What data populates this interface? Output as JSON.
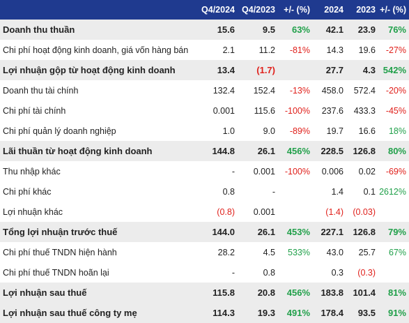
{
  "headers": [
    "",
    "Q4/2024",
    "Q4/2023",
    "+/- (%)",
    "2024",
    "2023",
    "+/- (%)"
  ],
  "rows": [
    {
      "bold": true,
      "cells": [
        {
          "t": "Doanh thu thuần"
        },
        {
          "t": "15.6"
        },
        {
          "t": "9.5"
        },
        {
          "t": "63%",
          "c": "pos"
        },
        {
          "t": "42.1"
        },
        {
          "t": "23.9"
        },
        {
          "t": "76%",
          "c": "pos"
        }
      ]
    },
    {
      "bold": false,
      "cells": [
        {
          "t": "Chi phí hoạt động kinh doanh, giá vốn hàng bán"
        },
        {
          "t": "2.1"
        },
        {
          "t": "11.2"
        },
        {
          "t": "-81%",
          "c": "neg"
        },
        {
          "t": "14.3"
        },
        {
          "t": "19.6"
        },
        {
          "t": "-27%",
          "c": "neg"
        }
      ]
    },
    {
      "bold": true,
      "cells": [
        {
          "t": "Lợi nhuận gộp từ hoạt động kinh doanh"
        },
        {
          "t": "13.4"
        },
        {
          "t": "(1.7)",
          "c": "neg"
        },
        {
          "t": ""
        },
        {
          "t": "27.7"
        },
        {
          "t": "4.3"
        },
        {
          "t": "542%",
          "c": "pos"
        }
      ]
    },
    {
      "bold": false,
      "cells": [
        {
          "t": "Doanh thu tài chính"
        },
        {
          "t": "132.4"
        },
        {
          "t": "152.4"
        },
        {
          "t": "-13%",
          "c": "neg"
        },
        {
          "t": "458.0"
        },
        {
          "t": "572.4"
        },
        {
          "t": "-20%",
          "c": "neg"
        }
      ]
    },
    {
      "bold": false,
      "cells": [
        {
          "t": "Chi phí tài chính"
        },
        {
          "t": "0.001"
        },
        {
          "t": "115.6"
        },
        {
          "t": "-100%",
          "c": "neg"
        },
        {
          "t": "237.6"
        },
        {
          "t": "433.3"
        },
        {
          "t": "-45%",
          "c": "neg"
        }
      ]
    },
    {
      "bold": false,
      "cells": [
        {
          "t": "Chi phí quản lý doanh nghiệp"
        },
        {
          "t": "1.0"
        },
        {
          "t": "9.0"
        },
        {
          "t": "-89%",
          "c": "neg"
        },
        {
          "t": "19.7"
        },
        {
          "t": "16.6"
        },
        {
          "t": "18%",
          "c": "pos"
        }
      ]
    },
    {
      "bold": true,
      "cells": [
        {
          "t": "Lãi thuần từ hoạt động kinh doanh"
        },
        {
          "t": "144.8"
        },
        {
          "t": "26.1"
        },
        {
          "t": "456%",
          "c": "pos"
        },
        {
          "t": "228.5"
        },
        {
          "t": "126.8"
        },
        {
          "t": "80%",
          "c": "pos"
        }
      ]
    },
    {
      "bold": false,
      "cells": [
        {
          "t": "Thu nhập khác"
        },
        {
          "t": "-"
        },
        {
          "t": "0.001"
        },
        {
          "t": "-100%",
          "c": "neg"
        },
        {
          "t": "0.006"
        },
        {
          "t": "0.02"
        },
        {
          "t": "-69%",
          "c": "neg"
        }
      ]
    },
    {
      "bold": false,
      "cells": [
        {
          "t": "Chi phí khác"
        },
        {
          "t": "0.8"
        },
        {
          "t": "-"
        },
        {
          "t": ""
        },
        {
          "t": "1.4"
        },
        {
          "t": "0.1"
        },
        {
          "t": "2612%",
          "c": "pos"
        }
      ]
    },
    {
      "bold": false,
      "cells": [
        {
          "t": "Lợi nhuận khác"
        },
        {
          "t": "(0.8)",
          "c": "neg"
        },
        {
          "t": "0.001"
        },
        {
          "t": ""
        },
        {
          "t": "(1.4)",
          "c": "neg"
        },
        {
          "t": "(0.03)",
          "c": "neg"
        },
        {
          "t": ""
        }
      ]
    },
    {
      "bold": true,
      "cells": [
        {
          "t": "Tổng lợi nhuận trước thuế"
        },
        {
          "t": "144.0"
        },
        {
          "t": "26.1"
        },
        {
          "t": "453%",
          "c": "pos"
        },
        {
          "t": "227.1"
        },
        {
          "t": "126.8"
        },
        {
          "t": "79%",
          "c": "pos"
        }
      ]
    },
    {
      "bold": false,
      "cells": [
        {
          "t": "Chi phí thuế TNDN hiện hành"
        },
        {
          "t": "28.2"
        },
        {
          "t": "4.5"
        },
        {
          "t": "533%",
          "c": "pos"
        },
        {
          "t": "43.0"
        },
        {
          "t": "25.7"
        },
        {
          "t": "67%",
          "c": "pos"
        }
      ]
    },
    {
      "bold": false,
      "cells": [
        {
          "t": "Chi phí thuế TNDN hoãn lại"
        },
        {
          "t": "-"
        },
        {
          "t": "0.8"
        },
        {
          "t": ""
        },
        {
          "t": "0.3"
        },
        {
          "t": "(0.3)",
          "c": "neg"
        },
        {
          "t": ""
        }
      ]
    },
    {
      "bold": true,
      "cells": [
        {
          "t": "Lợi nhuận sau thuế"
        },
        {
          "t": "115.8"
        },
        {
          "t": "20.8"
        },
        {
          "t": "456%",
          "c": "pos"
        },
        {
          "t": "183.8"
        },
        {
          "t": "101.4"
        },
        {
          "t": "81%",
          "c": "pos"
        }
      ]
    },
    {
      "bold": true,
      "cells": [
        {
          "t": "Lợi nhuận sau thuế công ty mẹ"
        },
        {
          "t": "114.3"
        },
        {
          "t": "19.3"
        },
        {
          "t": "491%",
          "c": "pos"
        },
        {
          "t": "178.4"
        },
        {
          "t": "93.5"
        },
        {
          "t": "91%",
          "c": "pos"
        }
      ]
    }
  ]
}
